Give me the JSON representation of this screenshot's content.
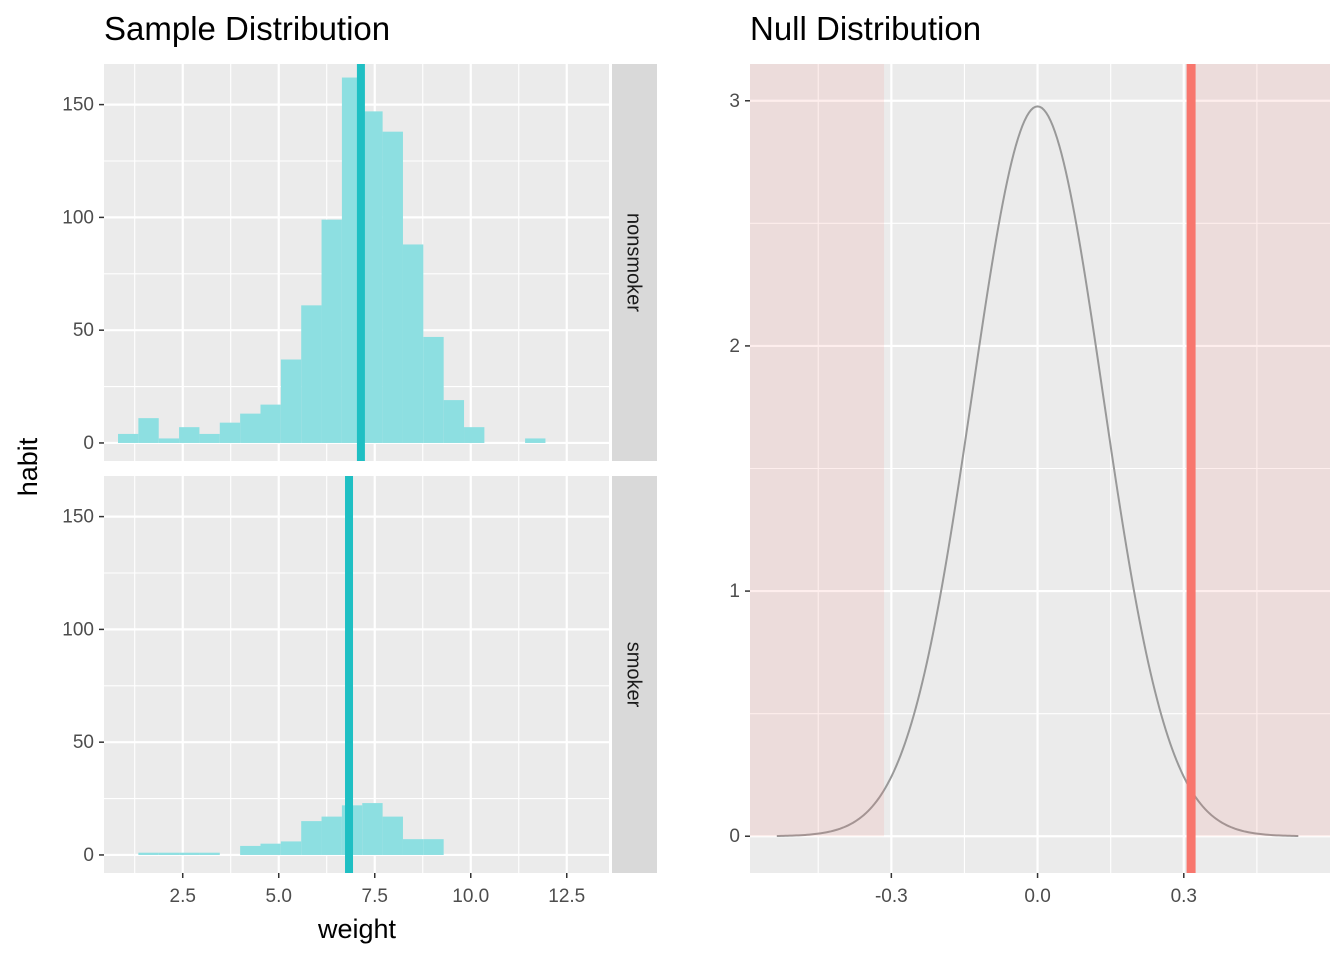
{
  "chart_data": [
    {
      "type": "bar",
      "title": "Sample Distribution",
      "xlabel": "weight",
      "ylabel": "habit",
      "xlim": [
        0.45,
        13.6
      ],
      "ylim": [
        -8,
        168
      ],
      "x_ticks": [
        "2.5",
        "5.0",
        "7.5",
        "10.0",
        "12.5"
      ],
      "y_ticks": [
        "0",
        "50",
        "100",
        "150"
      ],
      "bin_width": 0.53,
      "bar_color": "#8ddfe1",
      "mean_line_color": "#1fbfc3",
      "panels": [
        {
          "name": "nonsmoker",
          "mean": 7.14,
          "bins": [
            {
              "x": 1.08,
              "count": 4
            },
            {
              "x": 1.61,
              "count": 11
            },
            {
              "x": 2.14,
              "count": 2
            },
            {
              "x": 2.67,
              "count": 7
            },
            {
              "x": 3.2,
              "count": 4
            },
            {
              "x": 3.73,
              "count": 9
            },
            {
              "x": 4.26,
              "count": 13
            },
            {
              "x": 4.79,
              "count": 17
            },
            {
              "x": 5.32,
              "count": 37
            },
            {
              "x": 5.85,
              "count": 61
            },
            {
              "x": 6.38,
              "count": 99
            },
            {
              "x": 6.91,
              "count": 162
            },
            {
              "x": 7.44,
              "count": 147
            },
            {
              "x": 7.97,
              "count": 138
            },
            {
              "x": 8.5,
              "count": 88
            },
            {
              "x": 9.03,
              "count": 47
            },
            {
              "x": 9.56,
              "count": 19
            },
            {
              "x": 10.09,
              "count": 7
            },
            {
              "x": 11.68,
              "count": 2
            }
          ]
        },
        {
          "name": "smoker",
          "mean": 6.83,
          "bins": [
            {
              "x": 1.61,
              "count": 1
            },
            {
              "x": 2.14,
              "count": 1
            },
            {
              "x": 2.67,
              "count": 1
            },
            {
              "x": 3.2,
              "count": 1
            },
            {
              "x": 4.26,
              "count": 4
            },
            {
              "x": 4.79,
              "count": 5
            },
            {
              "x": 5.32,
              "count": 6
            },
            {
              "x": 5.85,
              "count": 15
            },
            {
              "x": 6.38,
              "count": 17
            },
            {
              "x": 6.91,
              "count": 22
            },
            {
              "x": 7.44,
              "count": 23
            },
            {
              "x": 7.97,
              "count": 17
            },
            {
              "x": 8.5,
              "count": 7
            },
            {
              "x": 9.03,
              "count": 7
            }
          ]
        }
      ]
    },
    {
      "type": "area",
      "title": "Null Distribution",
      "xlabel": "",
      "ylabel": "",
      "xlim": [
        -0.59,
        0.6
      ],
      "ylim": [
        -0.15,
        3.15
      ],
      "x_ticks": [
        "-0.3",
        "0.0",
        "0.3"
      ],
      "y_ticks": [
        "0",
        "1",
        "2",
        "3"
      ],
      "curve": {
        "type": "normal",
        "mean": 0,
        "sd": 0.134,
        "x_range": [
          -0.535,
          0.535
        ],
        "color": "#999999"
      },
      "observed_statistic": 0.315,
      "observed_color": "#f8766d",
      "shaded_regions": [
        [
          -0.59,
          -0.315
        ],
        [
          0.315,
          0.6
        ]
      ],
      "shade_color": "#f8766d"
    }
  ]
}
